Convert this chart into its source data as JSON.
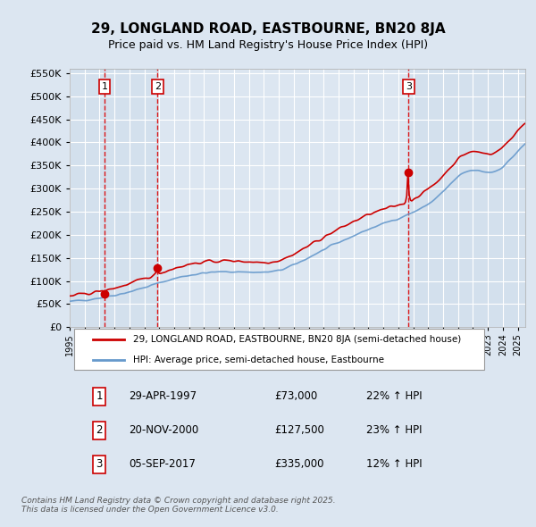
{
  "title": "29, LONGLAND ROAD, EASTBOURNE, BN20 8JA",
  "subtitle": "Price paid vs. HM Land Registry's House Price Index (HPI)",
  "legend_property": "29, LONGLAND ROAD, EASTBOURNE, BN20 8JA (semi-detached house)",
  "legend_hpi": "HPI: Average price, semi-detached house, Eastbourne",
  "transactions": [
    {
      "num": 1,
      "date": "29-APR-1997",
      "price": 73000,
      "hpi_pct": "22% ↑ HPI",
      "date_x": 1997.33
    },
    {
      "num": 2,
      "date": "20-NOV-2000",
      "price": 127500,
      "hpi_pct": "23% ↑ HPI",
      "date_x": 2000.89
    },
    {
      "num": 3,
      "date": "05-SEP-2017",
      "price": 335000,
      "hpi_pct": "12% ↑ HPI",
      "date_x": 2017.68
    }
  ],
  "property_color": "#cc0000",
  "hpi_color": "#6699cc",
  "vline_color": "#dd0000",
  "dot_color": "#cc0000",
  "background_color": "#dce6f1",
  "plot_bg_color": "#dce6f1",
  "shade_color": "#c5d5e8",
  "ylabel_color": "#000000",
  "grid_color": "#ffffff",
  "ylim": [
    0,
    560000
  ],
  "yticks": [
    0,
    50000,
    100000,
    150000,
    200000,
    250000,
    300000,
    350000,
    400000,
    450000,
    500000,
    550000
  ],
  "xlim_start": 1995.0,
  "xlim_end": 2025.5,
  "footer": "Contains HM Land Registry data © Crown copyright and database right 2025.\nThis data is licensed under the Open Government Licence v3.0."
}
